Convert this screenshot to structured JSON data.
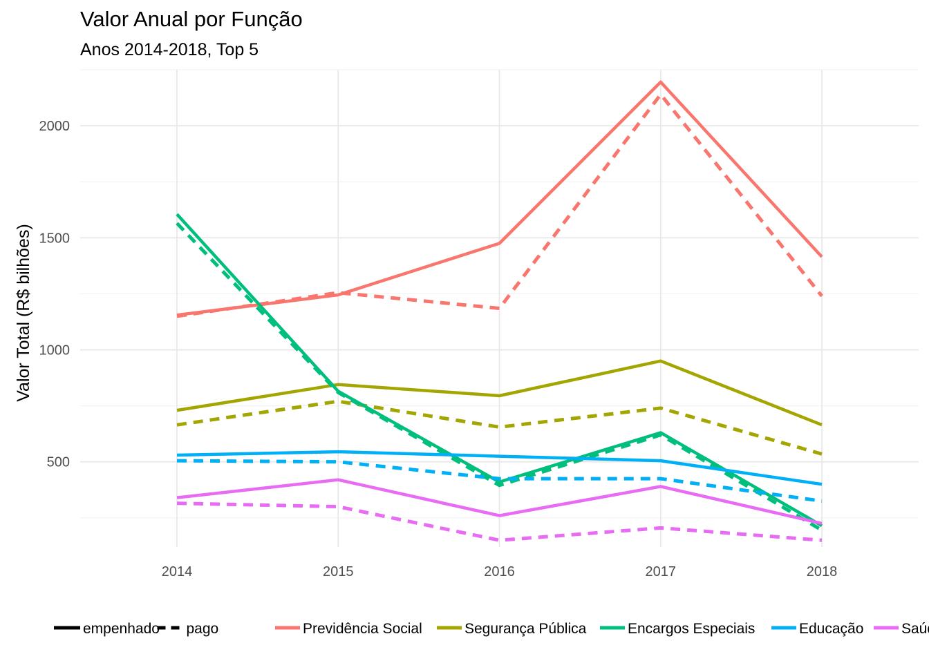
{
  "chart_data": {
    "type": "line",
    "title": "Valor Anual por Função",
    "subtitle": "Anos 2014-2018, Top 5",
    "xlabel": "",
    "ylabel": "Valor Total (R$ bilhões)",
    "x": [
      2014,
      2015,
      2016,
      2017,
      2018
    ],
    "x_ticks": [
      "2014",
      "2015",
      "2016",
      "2017",
      "2018"
    ],
    "y_ticks": [
      "500",
      "1000",
      "1500",
      "2000"
    ],
    "ylim": [
      120,
      2250
    ],
    "xlim": [
      2013.4,
      2018.6
    ],
    "grid": true,
    "legend_position": "bottom",
    "linetype_legend": [
      {
        "label": "empenhado",
        "dash": "solid"
      },
      {
        "label": "pago",
        "dash": "dashed"
      }
    ],
    "functions": [
      {
        "name": "Previdência Social",
        "color": "#F8766D"
      },
      {
        "name": "Segurança Pública",
        "color": "#A3A500"
      },
      {
        "name": "Encargos Especiais",
        "color": "#00BF7D"
      },
      {
        "name": "Educação",
        "color": "#00B0F6"
      },
      {
        "name": "Saúde",
        "color": "#E76BF3"
      }
    ],
    "series": [
      {
        "function": "Previdência Social",
        "type": "empenhado",
        "color": "#F8766D",
        "values": [
          1155,
          1245,
          1475,
          2195,
          1415
        ]
      },
      {
        "function": "Previdência Social",
        "type": "pago",
        "color": "#F8766D",
        "values": [
          1150,
          1255,
          1185,
          2140,
          1240
        ]
      },
      {
        "function": "Segurança Pública",
        "type": "empenhado",
        "color": "#A3A500",
        "values": [
          730,
          845,
          795,
          950,
          665
        ]
      },
      {
        "function": "Segurança Pública",
        "type": "pago",
        "color": "#A3A500",
        "values": [
          665,
          770,
          655,
          740,
          535
        ]
      },
      {
        "function": "Encargos Especiais",
        "type": "empenhado",
        "color": "#00BF7D",
        "values": [
          1605,
          815,
          410,
          630,
          215
        ]
      },
      {
        "function": "Encargos Especiais",
        "type": "pago",
        "color": "#00BF7D",
        "values": [
          1565,
          810,
          395,
          620,
          195
        ]
      },
      {
        "function": "Educação",
        "type": "empenhado",
        "color": "#00B0F6",
        "values": [
          530,
          545,
          525,
          505,
          400
        ]
      },
      {
        "function": "Educação",
        "type": "pago",
        "color": "#00B0F6",
        "values": [
          505,
          500,
          425,
          425,
          325
        ]
      },
      {
        "function": "Saúde",
        "type": "empenhado",
        "color": "#E76BF3",
        "values": [
          340,
          420,
          260,
          390,
          225
        ]
      },
      {
        "function": "Saúde",
        "type": "pago",
        "color": "#E76BF3",
        "values": [
          315,
          300,
          150,
          205,
          150
        ]
      }
    ]
  }
}
